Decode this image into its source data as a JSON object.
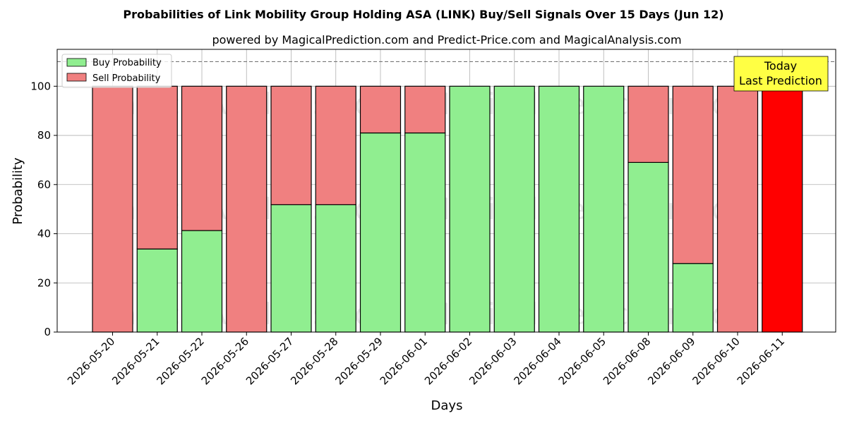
{
  "chart_data": {
    "type": "bar",
    "stacked": true,
    "title": "Probabilities of Link Mobility Group Holding ASA (LINK) Buy/Sell Signals Over 15 Days (Jun 12)",
    "subtitle": "powered by MagicalPrediction.com and Predict-Price.com and MagicalAnalysis.com",
    "xlabel": "Days",
    "ylabel": "Probability",
    "ylim": [
      0,
      115
    ],
    "yticks": [
      0,
      20,
      40,
      60,
      80,
      100
    ],
    "grid": true,
    "legend_position": "top-left",
    "reference_line": 110,
    "categories": [
      "2026-05-20",
      "2026-05-21",
      "2026-05-22",
      "2026-05-26",
      "2026-05-27",
      "2026-05-28",
      "2026-05-29",
      "2026-06-01",
      "2026-06-02",
      "2026-06-03",
      "2026-06-04",
      "2026-06-05",
      "2026-06-08",
      "2026-06-09",
      "2026-06-10",
      "2026-06-11"
    ],
    "series": [
      {
        "name": "Buy Probability",
        "color": "#90ee90",
        "values": [
          0,
          33.8,
          41.3,
          0,
          51.8,
          51.8,
          81.0,
          81.0,
          100,
          100,
          100,
          100,
          69.0,
          27.9,
          0,
          0
        ]
      },
      {
        "name": "Sell Probability",
        "color": "#f08080",
        "values": [
          100,
          66.2,
          58.7,
          100,
          48.2,
          48.2,
          19.0,
          19.0,
          0,
          0,
          0,
          0,
          31.0,
          72.1,
          100,
          100
        ]
      }
    ],
    "highlight": {
      "index": 15,
      "sell_color": "#ff0000"
    },
    "annotation": {
      "line1": "Today",
      "line2": "Last Prediction",
      "background": "#ffff44"
    },
    "watermarks": [
      "MagicalAnalysis.com",
      "MagicalPrediction.com"
    ]
  }
}
